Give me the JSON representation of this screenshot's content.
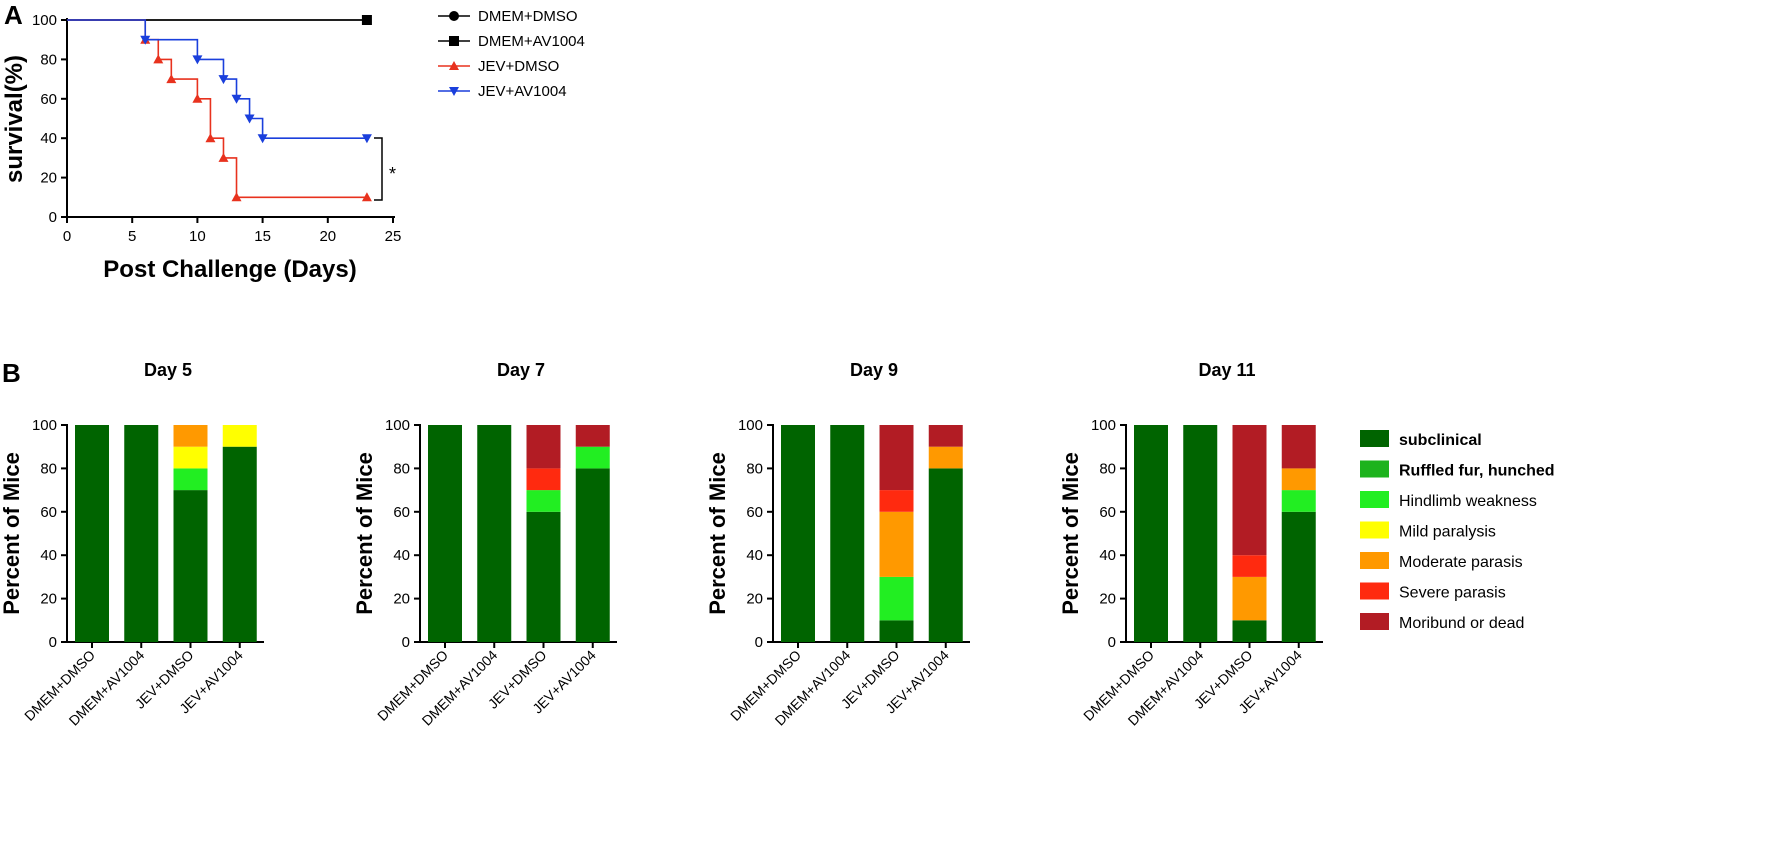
{
  "chart_data": [
    {
      "type": "line",
      "subtype": "kaplan-meier",
      "panel_label": "A",
      "xlabel": "Post Challenge (Days)",
      "ylabel": "survival(%)",
      "xlim": [
        0,
        25
      ],
      "ylim": [
        0,
        100
      ],
      "xticks": [
        0,
        5,
        10,
        15,
        20,
        25
      ],
      "yticks": [
        0,
        20,
        40,
        60,
        80,
        100
      ],
      "grid": false,
      "legend_position": "top-right",
      "significance_label": "*",
      "series": [
        {
          "name": "DMEM+DMSO",
          "color": "#000000",
          "marker": "circle",
          "steps": [
            [
              0,
              100
            ],
            [
              23,
              100
            ]
          ],
          "marker_points": []
        },
        {
          "name": "DMEM+AV1004",
          "color": "#000000",
          "marker": "square",
          "steps": [
            [
              0,
              100
            ],
            [
              23,
              100
            ]
          ],
          "marker_points": [
            [
              23,
              100
            ]
          ]
        },
        {
          "name": "JEV+DMSO",
          "color": "#e8321e",
          "marker": "triangle-up",
          "steps": [
            [
              0,
              100
            ],
            [
              6,
              90
            ],
            [
              7,
              80
            ],
            [
              8,
              70
            ],
            [
              10,
              60
            ],
            [
              11,
              40
            ],
            [
              12,
              30
            ],
            [
              13,
              10
            ],
            [
              23,
              10
            ]
          ],
          "marker_points": [
            [
              6,
              90
            ],
            [
              7,
              80
            ],
            [
              8,
              70
            ],
            [
              10,
              60
            ],
            [
              11,
              40
            ],
            [
              12,
              30
            ],
            [
              13,
              10
            ],
            [
              23,
              10
            ]
          ]
        },
        {
          "name": "JEV+AV1004",
          "color": "#1a3fdc",
          "marker": "triangle-down",
          "steps": [
            [
              0,
              100
            ],
            [
              6,
              90
            ],
            [
              10,
              80
            ],
            [
              12,
              70
            ],
            [
              13,
              60
            ],
            [
              14,
              50
            ],
            [
              15,
              40
            ],
            [
              23,
              40
            ]
          ],
          "marker_points": [
            [
              6,
              90
            ],
            [
              10,
              80
            ],
            [
              12,
              70
            ],
            [
              13,
              60
            ],
            [
              14,
              50
            ],
            [
              15,
              40
            ],
            [
              23,
              40
            ]
          ]
        }
      ]
    },
    {
      "type": "bar",
      "subtype": "stacked-percent",
      "panel_label": "B",
      "ylabel": "Percent of Mice",
      "ylim": [
        0,
        100
      ],
      "yticks": [
        0,
        20,
        40,
        60,
        80,
        100
      ],
      "categories": [
        "DMEM+DMSO",
        "DMEM+AV1004",
        "JEV+DMSO",
        "JEV+AV1004"
      ],
      "legend_position": "right",
      "legend": [
        {
          "label": "subclinical",
          "color": "#006400",
          "bold": true
        },
        {
          "label": "Ruffled fur, hunched",
          "color": "#1db31d",
          "bold": true
        },
        {
          "label": "Hindlimb weakness",
          "color": "#22ee22",
          "bold": false
        },
        {
          "label": "Mild paralysis",
          "color": "#ffff00",
          "bold": false
        },
        {
          "label": "Moderate parasis",
          "color": "#ff9900",
          "bold": false
        },
        {
          "label": "Severe parasis",
          "color": "#ff2a0f",
          "bold": false
        },
        {
          "label": "Moribund or dead",
          "color": "#b21c24",
          "bold": false
        }
      ],
      "panels": [
        {
          "title": "Day 5",
          "stacks": [
            [
              100,
              0,
              0,
              0,
              0,
              0,
              0
            ],
            [
              100,
              0,
              0,
              0,
              0,
              0,
              0
            ],
            [
              70,
              0,
              10,
              10,
              10,
              0,
              0
            ],
            [
              90,
              0,
              0,
              10,
              0,
              0,
              0
            ]
          ]
        },
        {
          "title": "Day 7",
          "stacks": [
            [
              100,
              0,
              0,
              0,
              0,
              0,
              0
            ],
            [
              100,
              0,
              0,
              0,
              0,
              0,
              0
            ],
            [
              60,
              0,
              10,
              0,
              0,
              10,
              20
            ],
            [
              80,
              0,
              10,
              0,
              0,
              0,
              10
            ]
          ]
        },
        {
          "title": "Day  9",
          "stacks": [
            [
              100,
              0,
              0,
              0,
              0,
              0,
              0
            ],
            [
              100,
              0,
              0,
              0,
              0,
              0,
              0
            ],
            [
              10,
              0,
              20,
              0,
              30,
              10,
              30
            ],
            [
              80,
              0,
              0,
              0,
              10,
              0,
              10
            ]
          ]
        },
        {
          "title": "Day  11",
          "stacks": [
            [
              100,
              0,
              0,
              0,
              0,
              0,
              0
            ],
            [
              100,
              0,
              0,
              0,
              0,
              0,
              0
            ],
            [
              10,
              0,
              0,
              0,
              20,
              10,
              60
            ],
            [
              60,
              0,
              10,
              0,
              10,
              0,
              20
            ]
          ]
        }
      ]
    }
  ]
}
